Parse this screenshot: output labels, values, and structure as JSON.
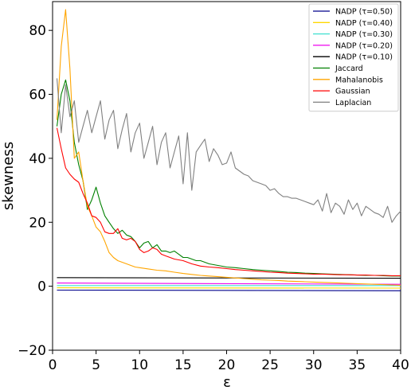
{
  "chart_data": {
    "type": "line",
    "xlabel": "ε",
    "ylabel": "skewness",
    "xlim": [
      0,
      40
    ],
    "ylim": [
      -20,
      89
    ],
    "xticks": [
      0,
      5,
      10,
      15,
      20,
      25,
      30,
      35,
      40
    ],
    "yticks": [
      -20,
      0,
      20,
      40,
      60,
      80
    ],
    "legend_position": "top-right",
    "grid": false,
    "series": [
      {
        "name": "NADP (τ=0.50)",
        "color": "#00008b",
        "x": [
          0.5,
          40
        ],
        "y": [
          -1.2,
          -1.4
        ]
      },
      {
        "name": "NADP (τ=0.40)",
        "color": "#ffd700",
        "x": [
          0.5,
          40
        ],
        "y": [
          -0.5,
          -0.6
        ]
      },
      {
        "name": "NADP (τ=0.30)",
        "color": "#40e0d0",
        "x": [
          0.5,
          40
        ],
        "y": [
          0.2,
          0.2
        ]
      },
      {
        "name": "NADP (τ=0.20)",
        "color": "#ee00ee",
        "x": [
          0.5,
          40
        ],
        "y": [
          1.0,
          0.6
        ]
      },
      {
        "name": "NADP (τ=0.10)",
        "color": "#000000",
        "x": [
          0.5,
          40
        ],
        "y": [
          2.7,
          2.5
        ]
      },
      {
        "name": "Jaccard",
        "color": "#008000",
        "x": [
          0.5,
          1,
          1.5,
          2,
          2.5,
          3,
          3.5,
          4,
          4.5,
          5,
          5.5,
          6,
          6.5,
          7,
          7.5,
          8,
          8.5,
          9,
          9.5,
          10,
          10.5,
          11,
          11.5,
          12,
          12.5,
          13,
          13.5,
          14,
          14.5,
          15,
          15.5,
          16,
          16.5,
          17,
          17.5,
          18,
          19,
          20,
          21,
          22,
          23,
          24,
          25,
          26,
          27,
          28,
          29,
          30,
          31,
          32,
          33,
          34,
          35,
          36,
          37,
          38,
          39,
          40
        ],
        "y": [
          50,
          60,
          64.5,
          58,
          45,
          38,
          33,
          24,
          27,
          31,
          26,
          22,
          20,
          18,
          16.5,
          17.5,
          16,
          15.5,
          14,
          12,
          13.5,
          14,
          12,
          13,
          11,
          11,
          10.5,
          11,
          10,
          9,
          9,
          8.5,
          8,
          8,
          7.5,
          7,
          6.5,
          6,
          5.8,
          5.5,
          5.2,
          5,
          4.8,
          4.6,
          4.4,
          4.3,
          4.1,
          4,
          3.9,
          3.8,
          3.7,
          3.6,
          3.5,
          3.4,
          3.4,
          3.3,
          3.2,
          3.2
        ]
      },
      {
        "name": "Mahalanobis",
        "color": "#ffa500",
        "x": [
          0.5,
          1,
          1.5,
          2,
          2.5,
          3,
          3.5,
          4,
          4.5,
          5,
          5.5,
          6,
          6.5,
          7,
          7.5,
          8,
          8.5,
          9,
          9.5,
          10,
          11,
          12,
          13,
          14,
          15,
          16,
          17,
          18,
          19,
          20,
          21,
          22,
          23,
          24,
          25,
          26,
          27,
          28,
          29,
          30,
          31,
          32,
          33,
          34,
          35,
          36,
          37,
          38,
          39,
          40
        ],
        "y": [
          52,
          75,
          86.5,
          68,
          40,
          42,
          33,
          25,
          22,
          18.5,
          17,
          14,
          10.5,
          9,
          8,
          7.5,
          7,
          6.5,
          6,
          5.8,
          5.4,
          5,
          4.8,
          4.4,
          4,
          3.7,
          3.4,
          3.2,
          3,
          2.8,
          2.6,
          2.4,
          2.2,
          2,
          1.9,
          1.8,
          1.6,
          1.5,
          1.4,
          1.3,
          1.2,
          1.1,
          1,
          0.9,
          0.8,
          0.7,
          0.6,
          0.5,
          0.4,
          0.3
        ]
      },
      {
        "name": "Gaussian",
        "color": "#ff0000",
        "x": [
          0.5,
          1,
          1.5,
          2,
          2.5,
          3,
          3.5,
          4,
          4.5,
          5,
          5.5,
          6,
          6.5,
          7,
          7.5,
          8,
          8.5,
          9,
          9.5,
          10,
          10.5,
          11,
          11.5,
          12,
          12.5,
          13,
          13.5,
          14,
          15,
          16,
          17,
          18,
          19,
          20,
          21,
          22,
          23,
          24,
          25,
          26,
          27,
          28,
          29,
          30,
          31,
          32,
          33,
          34,
          35,
          36,
          37,
          38,
          39,
          40
        ],
        "y": [
          49.5,
          43,
          37,
          35,
          33.5,
          32.5,
          29,
          26,
          22,
          21.5,
          20,
          17,
          16.5,
          16.5,
          18,
          15,
          14.5,
          15,
          14,
          11.5,
          10.5,
          11,
          12,
          11.5,
          10,
          9.5,
          9,
          8.5,
          8,
          7,
          6.3,
          6,
          5.8,
          5.5,
          5.2,
          5,
          4.8,
          4.6,
          4.4,
          4.3,
          4.1,
          4,
          3.9,
          3.8,
          3.8,
          3.7,
          3.6,
          3.6,
          3.5,
          3.5,
          3.4,
          3.4,
          3.3,
          3.3
        ]
      },
      {
        "name": "Laplacian",
        "color": "#808080",
        "x": [
          0.5,
          1,
          1.5,
          2,
          2.5,
          3,
          3.5,
          4,
          4.5,
          5,
          5.5,
          6,
          6.5,
          7,
          7.5,
          8,
          8.5,
          9,
          9.5,
          10,
          10.5,
          11,
          11.5,
          12,
          12.5,
          13,
          13.5,
          14,
          14.5,
          15,
          15.5,
          16,
          16.5,
          17,
          17.5,
          18,
          18.5,
          19,
          19.5,
          20,
          20.5,
          21,
          21.5,
          22,
          22.5,
          23,
          23.5,
          24,
          24.5,
          25,
          25.5,
          26,
          26.5,
          27,
          27.5,
          28,
          28.5,
          29,
          29.5,
          30,
          30.5,
          31,
          31.5,
          32,
          32.5,
          33,
          33.5,
          34,
          34.5,
          35,
          35.5,
          36,
          36.5,
          37,
          37.5,
          38,
          38.5,
          39,
          39.5,
          40
        ],
        "y": [
          65,
          48,
          63,
          53,
          58,
          45,
          50,
          55,
          48,
          53,
          58,
          46,
          52,
          55,
          43,
          49,
          54,
          42,
          48,
          51,
          40,
          45,
          50,
          38,
          45,
          48,
          37,
          42,
          47,
          32,
          48,
          30,
          42,
          44,
          46,
          39,
          43,
          41,
          38,
          38.5,
          42,
          37,
          36,
          35,
          34.5,
          33,
          32.5,
          32,
          31.5,
          30,
          30.5,
          29,
          28,
          28,
          27.5,
          27.5,
          27,
          26.5,
          26,
          25.5,
          27,
          23.5,
          29,
          23,
          26,
          25,
          22.5,
          27,
          24,
          26,
          22,
          25,
          24,
          23,
          22.5,
          21.5,
          25,
          20,
          22,
          23.5
        ]
      }
    ]
  }
}
